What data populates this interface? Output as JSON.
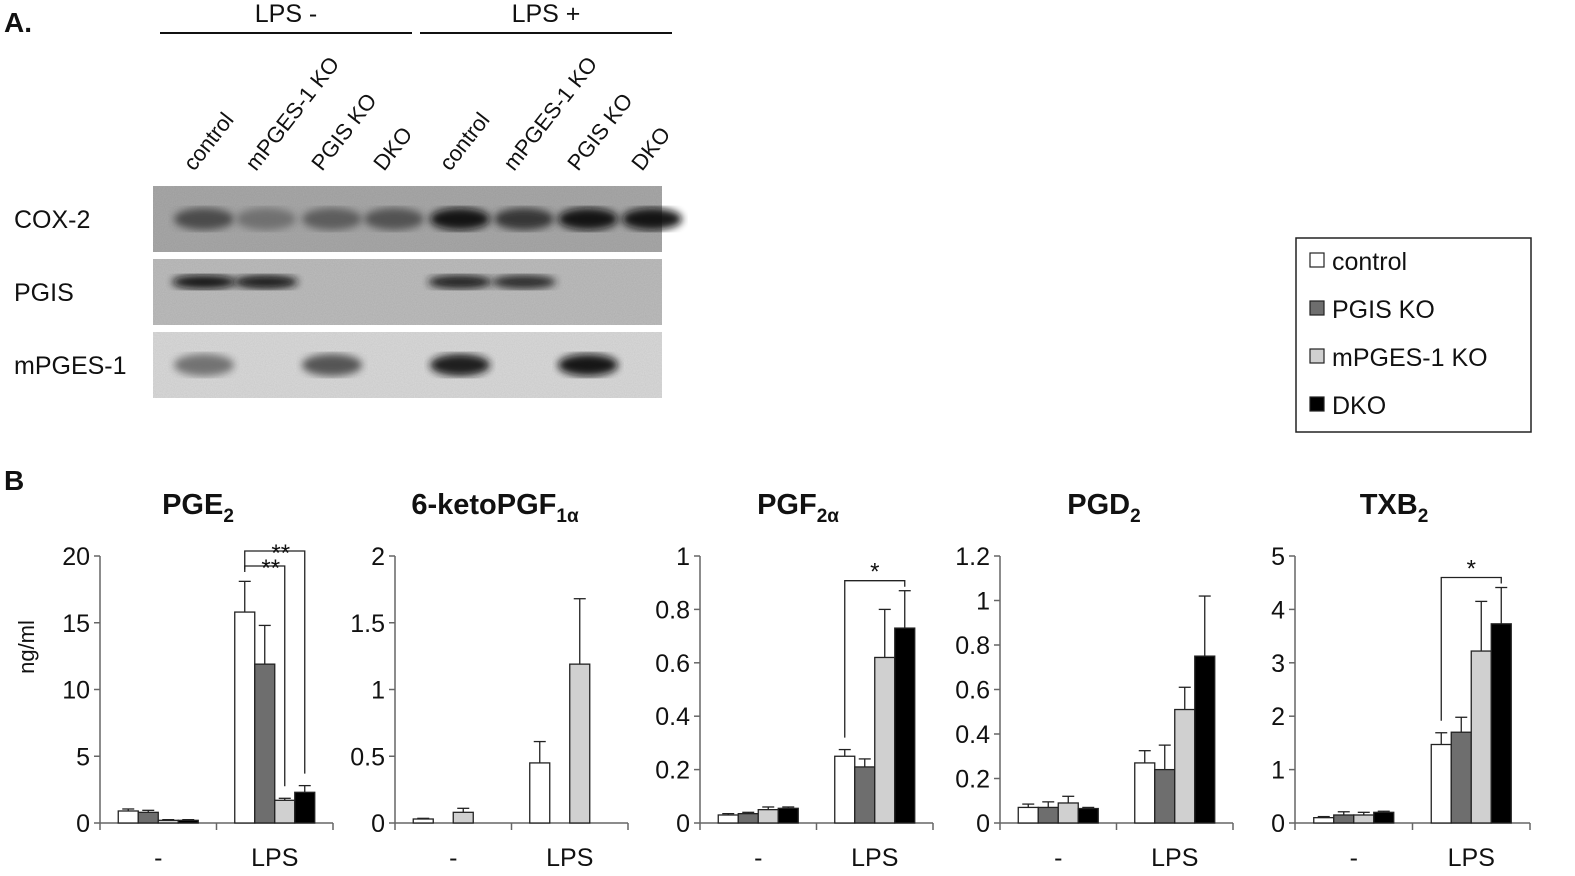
{
  "panel_a": {
    "label": "A.",
    "groups": [
      "LPS -",
      "LPS +"
    ],
    "lanes": [
      "control",
      "mPGES-1 KO",
      "PGIS KO",
      "DKO",
      "control",
      "mPGES-1 KO",
      "PGIS KO",
      "DKO"
    ],
    "rows": [
      "COX-2",
      "PGIS",
      "mPGES-1"
    ],
    "band_intensity": {
      "COX-2": [
        0.65,
        0.45,
        0.55,
        0.6,
        0.95,
        0.75,
        0.95,
        0.95
      ],
      "PGIS": [
        0.95,
        0.9,
        0,
        0,
        0.85,
        0.8,
        0,
        0
      ],
      "mPGES-1": [
        0.45,
        0,
        0.6,
        0,
        0.9,
        0,
        0.95,
        0
      ]
    }
  },
  "legend": {
    "items": [
      {
        "label": "control",
        "color": "#ffffff"
      },
      {
        "label": "PGIS KO",
        "color": "#6e6e6e"
      },
      {
        "label": "mPGES-1 KO",
        "color": "#d0d0d0"
      },
      {
        "label": "DKO",
        "color": "#000000"
      }
    ]
  },
  "panel_b": {
    "label": "B",
    "ylabel": "ng/ml"
  },
  "chart_data": [
    {
      "type": "bar",
      "title": "PGE",
      "title_sub": "2",
      "categories": [
        "-",
        "LPS"
      ],
      "ylim": [
        0,
        20
      ],
      "yticks": [
        "0",
        "5",
        "10",
        "15",
        "20"
      ],
      "ylabel": "ng/ml",
      "series": [
        {
          "name": "control",
          "values": [
            0.9,
            15.8
          ],
          "errors": [
            0.15,
            2.3
          ]
        },
        {
          "name": "PGIS KO",
          "values": [
            0.8,
            11.9
          ],
          "errors": [
            0.15,
            2.9
          ]
        },
        {
          "name": "mPGES-1 KO",
          "values": [
            0.2,
            1.7
          ],
          "errors": [
            0.05,
            0.15
          ]
        },
        {
          "name": "DKO",
          "values": [
            0.2,
            2.3
          ],
          "errors": [
            0.05,
            0.5
          ]
        }
      ],
      "significance": [
        {
          "text": "**",
          "from_series": 0,
          "to_series": 2,
          "category": 1
        },
        {
          "text": "**",
          "from_series": 0,
          "to_series": 3,
          "category": 1
        }
      ]
    },
    {
      "type": "bar",
      "title": "6-ketoPGF",
      "title_sub": "1α",
      "categories": [
        "-",
        "LPS"
      ],
      "ylim": [
        0,
        2
      ],
      "yticks": [
        "0",
        "0.5",
        "1",
        "1.5",
        "2"
      ],
      "series": [
        {
          "name": "control",
          "values": [
            0.03,
            0.45
          ],
          "errors": [
            0.005,
            0.16
          ]
        },
        {
          "name": "PGIS KO",
          "values": [
            0,
            0
          ],
          "errors": [
            0,
            0
          ]
        },
        {
          "name": "mPGES-1 KO",
          "values": [
            0.08,
            1.19
          ],
          "errors": [
            0.03,
            0.49
          ]
        },
        {
          "name": "DKO",
          "values": [
            0,
            0
          ],
          "errors": [
            0,
            0
          ]
        }
      ],
      "significance": []
    },
    {
      "type": "bar",
      "title": "PGF",
      "title_sub": "2α",
      "categories": [
        "-",
        "LPS"
      ],
      "ylim": [
        0,
        1
      ],
      "yticks": [
        "0",
        "0.2",
        "0.4",
        "0.6",
        "0.8",
        "1"
      ],
      "series": [
        {
          "name": "control",
          "values": [
            0.03,
            0.25
          ],
          "errors": [
            0.005,
            0.025
          ]
        },
        {
          "name": "PGIS KO",
          "values": [
            0.035,
            0.21
          ],
          "errors": [
            0.005,
            0.03
          ]
        },
        {
          "name": "mPGES-1 KO",
          "values": [
            0.05,
            0.62
          ],
          "errors": [
            0.01,
            0.18
          ]
        },
        {
          "name": "DKO",
          "values": [
            0.055,
            0.73
          ],
          "errors": [
            0.005,
            0.14
          ]
        }
      ],
      "significance": [
        {
          "text": "*",
          "from_series": 0,
          "to_series": 3,
          "category": 1
        }
      ]
    },
    {
      "type": "bar",
      "title": "PGD",
      "title_sub": "2",
      "categories": [
        "-",
        "LPS"
      ],
      "ylim": [
        0,
        1.2
      ],
      "yticks": [
        "0",
        "0.2",
        "0.4",
        "0.6",
        "0.8",
        "1",
        "1.2"
      ],
      "series": [
        {
          "name": "control",
          "values": [
            0.07,
            0.27
          ],
          "errors": [
            0.015,
            0.055
          ]
        },
        {
          "name": "PGIS KO",
          "values": [
            0.07,
            0.24
          ],
          "errors": [
            0.025,
            0.11
          ]
        },
        {
          "name": "mPGES-1 KO",
          "values": [
            0.09,
            0.51
          ],
          "errors": [
            0.03,
            0.1
          ]
        },
        {
          "name": "DKO",
          "values": [
            0.065,
            0.75
          ],
          "errors": [
            0.005,
            0.27
          ]
        }
      ],
      "significance": []
    },
    {
      "type": "bar",
      "title": "TXB",
      "title_sub": "2",
      "categories": [
        "-",
        "LPS"
      ],
      "ylim": [
        0,
        5
      ],
      "yticks": [
        "0",
        "1",
        "2",
        "3",
        "4",
        "5"
      ],
      "series": [
        {
          "name": "control",
          "values": [
            0.1,
            1.47
          ],
          "errors": [
            0.02,
            0.22
          ]
        },
        {
          "name": "PGIS KO",
          "values": [
            0.15,
            1.7
          ],
          "errors": [
            0.06,
            0.28
          ]
        },
        {
          "name": "mPGES-1 KO",
          "values": [
            0.15,
            3.22
          ],
          "errors": [
            0.05,
            0.93
          ]
        },
        {
          "name": "DKO",
          "values": [
            0.2,
            3.73
          ],
          "errors": [
            0.02,
            0.68
          ]
        }
      ],
      "significance": [
        {
          "text": "*",
          "from_series": 0,
          "to_series": 3,
          "category": 1
        }
      ]
    }
  ]
}
